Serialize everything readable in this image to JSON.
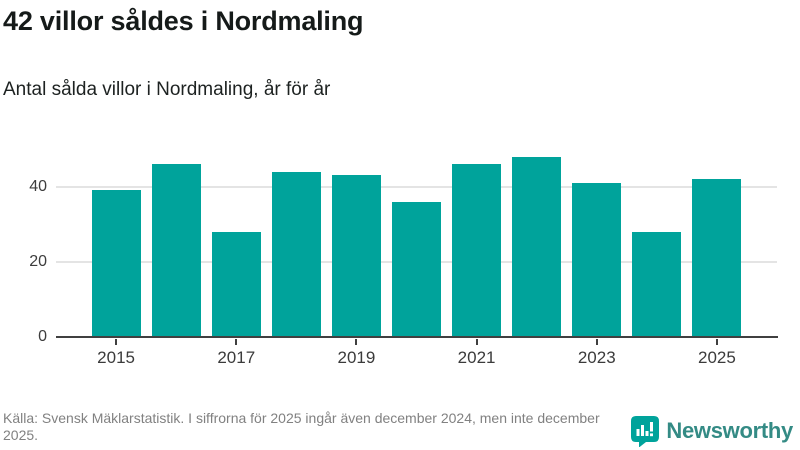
{
  "header": {
    "title": "42 villor såldes i Nordmaling",
    "subtitle": "Antal sålda villor i Nordmaling, år för år"
  },
  "chart_data": {
    "type": "bar",
    "title": "42 villor såldes i Nordmaling",
    "subtitle": "Antal sålda villor i Nordmaling, år för år",
    "categories": [
      2015,
      2016,
      2017,
      2018,
      2019,
      2020,
      2021,
      2022,
      2023,
      2024,
      2025
    ],
    "values": [
      39,
      46,
      28,
      44,
      43,
      36,
      46,
      48,
      41,
      28,
      42
    ],
    "xlabel": "",
    "ylabel": "",
    "ylim": [
      0,
      50
    ],
    "yticks": [
      0,
      20,
      40
    ],
    "xticks_shown": [
      2015,
      2017,
      2019,
      2021,
      2023,
      2025
    ],
    "grid": "horizontal",
    "legend_position": "none",
    "bar_color": "#00a39b",
    "gridline_color": "#e4e4e4",
    "axis_color": "#404040"
  },
  "footer": {
    "source_text": "Källa: Svensk Mäklarstatistik. I siffrorna för 2025 ingår även december 2024, men inte december 2025.",
    "brand": {
      "name": "Newsworthy",
      "icon": "bar-chart-speech-bubble-icon",
      "text_color": "#348b85",
      "icon_color": "#00a39b"
    }
  }
}
